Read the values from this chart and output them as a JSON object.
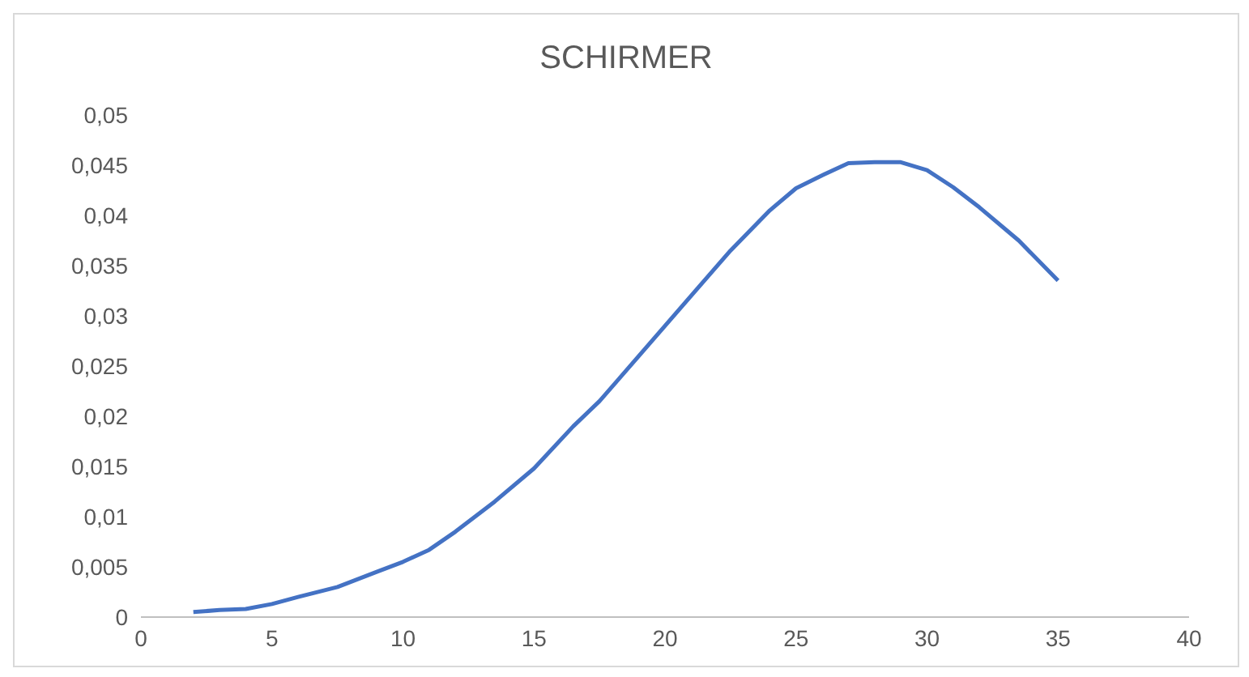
{
  "chart_data": {
    "type": "line",
    "title": "SCHIRMER",
    "x": [
      2,
      3,
      4,
      5,
      6,
      7.5,
      9,
      10,
      11,
      12,
      13.5,
      15,
      16.5,
      17.5,
      19,
      20,
      21,
      22.5,
      24,
      25,
      26,
      27,
      28,
      29,
      30,
      31,
      32,
      33.5,
      35
    ],
    "series": [
      {
        "color": "#4472c4",
        "values": [
          0.0005,
          0.0007,
          0.0008,
          0.0013,
          0.002,
          0.003,
          0.0045,
          0.0055,
          0.0067,
          0.0085,
          0.0115,
          0.0148,
          0.019,
          0.0215,
          0.026,
          0.029,
          0.032,
          0.0365,
          0.0405,
          0.0427,
          0.044,
          0.0452,
          0.0453,
          0.0453,
          0.0445,
          0.0428,
          0.0408,
          0.0375,
          0.0335
        ]
      }
    ],
    "xlim": [
      0,
      40
    ],
    "xticks": [
      0,
      5,
      10,
      15,
      20,
      25,
      30,
      35,
      40
    ],
    "ylim": [
      0,
      0.05
    ],
    "yticks": [
      {
        "value": 0,
        "label": "0"
      },
      {
        "value": 0.005,
        "label": "0,005"
      },
      {
        "value": 0.01,
        "label": "0,01"
      },
      {
        "value": 0.015,
        "label": "0,015"
      },
      {
        "value": 0.02,
        "label": "0,02"
      },
      {
        "value": 0.025,
        "label": "0,025"
      },
      {
        "value": 0.03,
        "label": "0,03"
      },
      {
        "value": 0.035,
        "label": "0,035"
      },
      {
        "value": 0.04,
        "label": "0,04"
      },
      {
        "value": 0.045,
        "label": "0,045"
      },
      {
        "value": 0.05,
        "label": "0,05"
      }
    ],
    "grid": false,
    "legend": false,
    "marker": "none",
    "line_style": "solid"
  }
}
